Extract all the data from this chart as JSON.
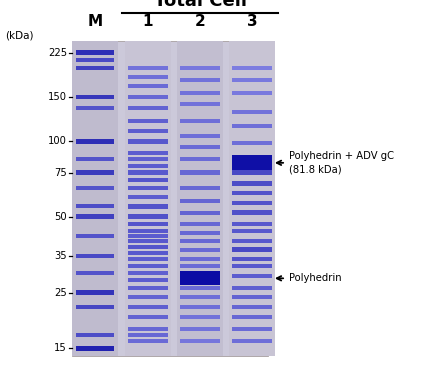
{
  "title": "Total Cell",
  "title_fontsize": 13,
  "title_fontweight": "bold",
  "mw_labels": [
    "225",
    "150",
    "100",
    "75",
    "50",
    "35",
    "25",
    "15"
  ],
  "mw_values": [
    225,
    150,
    100,
    75,
    50,
    35,
    25,
    15
  ],
  "kdal_label": "(kDa)",
  "lane_labels": [
    "M",
    "1",
    "2",
    "3"
  ],
  "annotation1_line1": "Polyhedrin + ADV gC",
  "annotation1_line2": "(81.8 kDa)",
  "annotation2": "Polyhedrin",
  "gel_bg": "#cdc9dc",
  "outer_bg": "#e8e4f0",
  "mw_marker_lane_bg": "#c8c4d8",
  "lane1_bg": "#d0cce0",
  "lane2_bg": "#ccc8dc",
  "lane3_bg": "#ccc8dc",
  "mw_min_log": 1.146,
  "mw_max_log": 2.38
}
